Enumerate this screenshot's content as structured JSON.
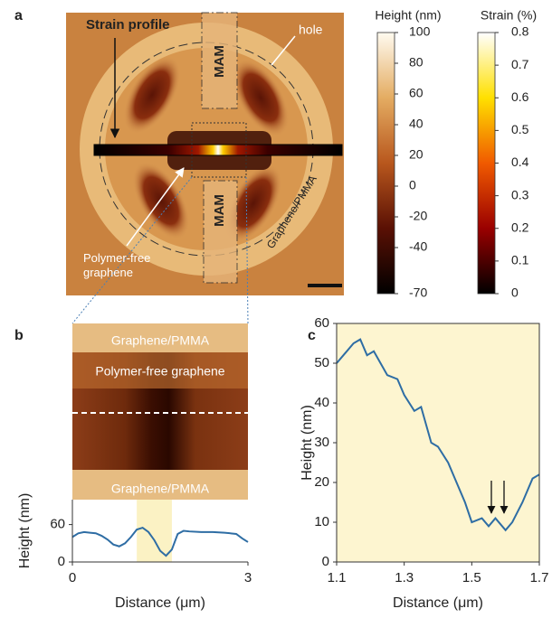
{
  "panels": [
    "a",
    "b",
    "c"
  ],
  "image_a": {
    "strain_profile": "Strain profile",
    "hole": "hole",
    "mam_top": "MAM",
    "mam_bottom": "MAM",
    "graphene_pmma": "Graphene/PMMA",
    "polymer_free": "Polymer-free graphene"
  },
  "image_b": {
    "top": "Graphene/PMMA",
    "middle": "Polymer-free graphene",
    "bottom": "Graphene/PMMA"
  },
  "colorbars": [
    {
      "label": "Height (nm)",
      "lim": [
        -70,
        100
      ],
      "ticks": [
        100,
        80,
        60,
        40,
        20,
        0,
        -20,
        -40,
        -70
      ]
    },
    {
      "label": "Strain (%)",
      "lim": [
        0,
        0.8
      ],
      "ticks": [
        0.8,
        0.7,
        0.6,
        0.5,
        0.4,
        0.3,
        0.2,
        0.1,
        0
      ]
    }
  ],
  "chart_data": [
    {
      "type": "line",
      "xlabel": "Distance (μm)",
      "ylabel": "Height (nm)",
      "color": "#2e6da4",
      "xlim": [
        0,
        3
      ],
      "xticks": [
        0,
        3
      ],
      "ylim": [
        0,
        100
      ],
      "yticks": [
        0,
        60
      ],
      "highlight_x": [
        1.1,
        1.7
      ],
      "x": [
        0,
        0.1,
        0.2,
        0.3,
        0.4,
        0.5,
        0.6,
        0.7,
        0.8,
        0.9,
        1.0,
        1.1,
        1.2,
        1.3,
        1.4,
        1.5,
        1.6,
        1.7,
        1.8,
        1.9,
        2.0,
        2.2,
        2.4,
        2.6,
        2.8,
        2.9,
        3.0
      ],
      "values": [
        40,
        46,
        48,
        47,
        46,
        42,
        36,
        28,
        25,
        30,
        40,
        52,
        55,
        48,
        35,
        18,
        10,
        20,
        45,
        50,
        49,
        48,
        48,
        47,
        45,
        38,
        32
      ]
    },
    {
      "type": "line",
      "xlabel": "Distance (μm)",
      "ylabel": "Height (nm)",
      "color": "#2e6da4",
      "background": "#fdf5d0",
      "xlim": [
        1.1,
        1.7
      ],
      "xticks": [
        1.1,
        1.3,
        1.5,
        1.7
      ],
      "ylim": [
        0,
        60
      ],
      "yticks": [
        0,
        10,
        20,
        30,
        40,
        50,
        60
      ],
      "x": [
        1.1,
        1.12,
        1.15,
        1.17,
        1.19,
        1.21,
        1.23,
        1.25,
        1.28,
        1.3,
        1.33,
        1.35,
        1.38,
        1.4,
        1.43,
        1.45,
        1.48,
        1.5,
        1.53,
        1.55,
        1.57,
        1.6,
        1.62,
        1.65,
        1.68,
        1.7
      ],
      "values": [
        50,
        52,
        55,
        56,
        52,
        53,
        50,
        47,
        46,
        42,
        38,
        39,
        30,
        29,
        25,
        21,
        15,
        10,
        11,
        9,
        11,
        8,
        10,
        15,
        21,
        22
      ]
    }
  ]
}
